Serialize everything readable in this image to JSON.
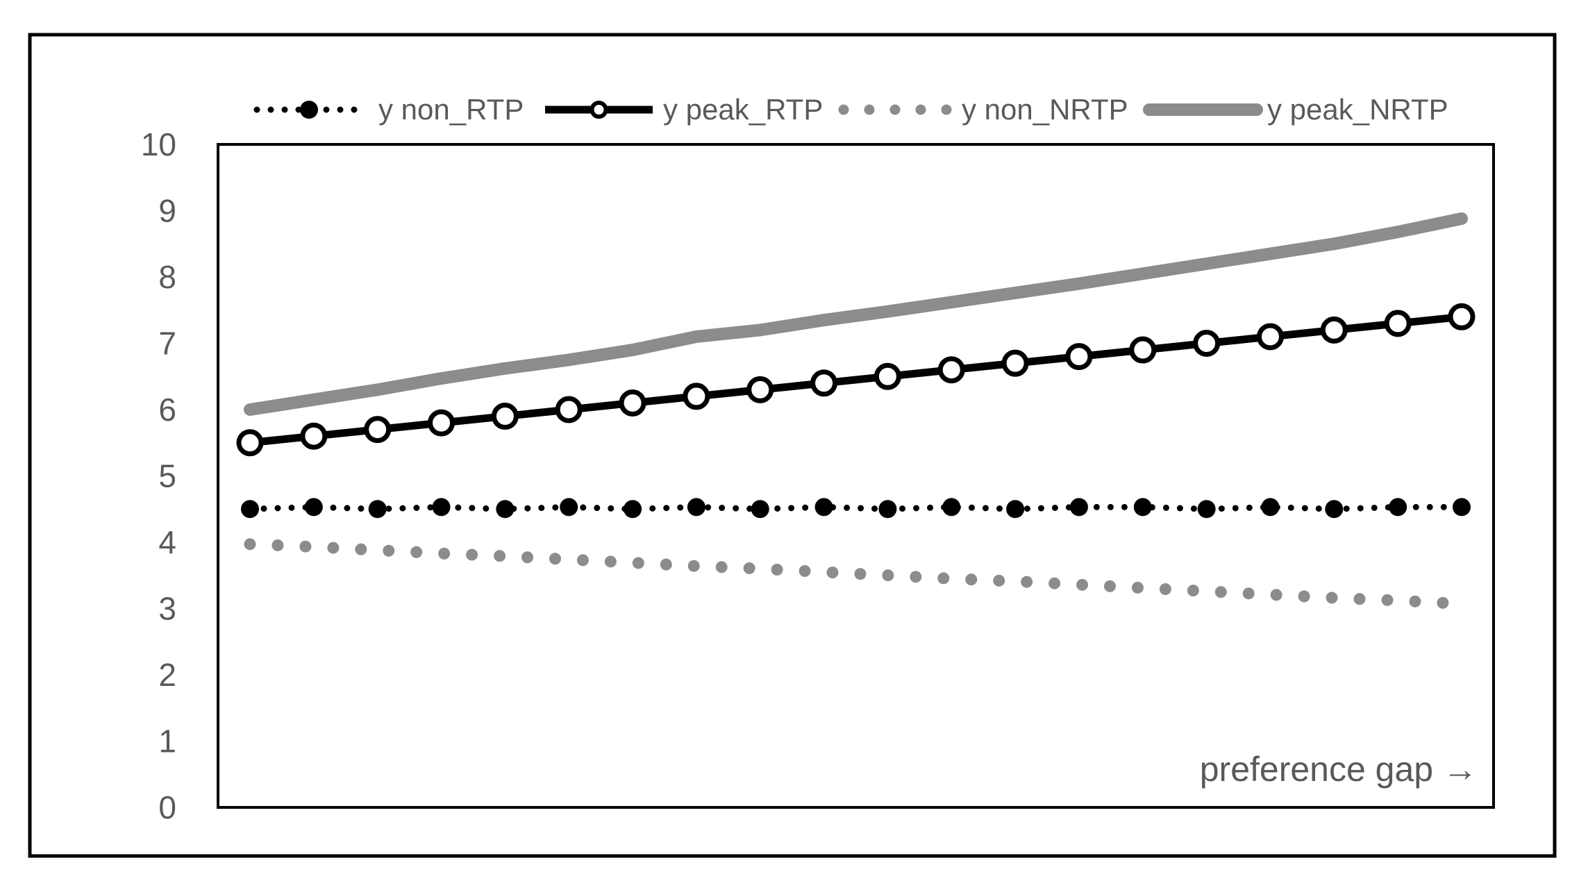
{
  "chart_data": {
    "type": "line",
    "title": "",
    "xlabel": "",
    "ylabel": "",
    "ylim": [
      0,
      10
    ],
    "yticks": [
      "0",
      "1",
      "2",
      "3",
      "4",
      "5",
      "6",
      "7",
      "8",
      "9",
      "10"
    ],
    "grid": false,
    "legend_position": "top",
    "annotation": "preference gap →",
    "series": [
      {
        "name": "y non_RTP",
        "style": "dotted-filled-markers",
        "color": "#000000",
        "values": [
          4.5,
          4.53,
          4.5,
          4.53,
          4.5,
          4.53,
          4.5,
          4.53,
          4.5,
          4.53,
          4.5,
          4.53,
          4.5,
          4.53,
          4.53,
          4.5,
          4.53,
          4.5,
          4.53,
          4.53
        ]
      },
      {
        "name": "y peak_RTP",
        "style": "solid-open-markers",
        "color": "#000000",
        "values": [
          5.5,
          5.6,
          5.7,
          5.8,
          5.9,
          6.0,
          6.1,
          6.2,
          6.3,
          6.4,
          6.5,
          6.6,
          6.7,
          6.8,
          6.9,
          7.0,
          7.1,
          7.2,
          7.3,
          7.4
        ]
      },
      {
        "name": "y non_NRTP",
        "style": "dotted",
        "color": "#8c8c8c",
        "values": [
          3.97,
          3.93,
          3.88,
          3.83,
          3.79,
          3.74,
          3.69,
          3.64,
          3.6,
          3.55,
          3.5,
          3.45,
          3.41,
          3.36,
          3.31,
          3.26,
          3.21,
          3.16,
          3.12,
          3.07
        ]
      },
      {
        "name": "y peak_NRTP",
        "style": "solid-thick",
        "color": "#8c8c8c",
        "values": [
          6.0,
          6.15,
          6.3,
          6.47,
          6.62,
          6.75,
          6.9,
          7.1,
          7.2,
          7.35,
          7.48,
          7.62,
          7.76,
          7.9,
          8.05,
          8.2,
          8.35,
          8.5,
          8.68,
          8.88
        ]
      }
    ]
  }
}
